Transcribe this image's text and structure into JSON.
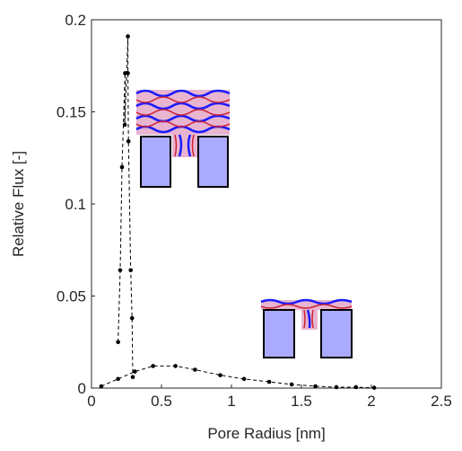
{
  "chart_data": {
    "type": "line",
    "xlabel": "Pore Radius [nm]",
    "ylabel": "Relative Flux [-]",
    "series": [
      {
        "color": "#000000",
        "x": [
          0.19,
          0.205,
          0.218,
          0.24,
          0.238,
          0.26,
          0.26,
          0.264,
          0.28,
          0.29,
          0.295
        ],
        "values": [
          0.025,
          0.064,
          0.12,
          0.171,
          0.143,
          0.191,
          0.171,
          0.134,
          0.064,
          0.038,
          0.006
        ]
      },
      {
        "color": "#000000",
        "x": [
          0.07,
          0.19,
          0.31,
          0.44,
          0.6,
          0.74,
          0.92,
          1.09,
          1.27,
          1.43,
          1.6,
          1.75,
          1.89,
          2.02
        ],
        "values": [
          0.001,
          0.005,
          0.009,
          0.012,
          0.012,
          0.01,
          0.007,
          0.005,
          0.0034,
          0.002,
          0.001,
          0.0005,
          0.0005,
          0.0002
        ]
      }
    ],
    "xlim": [
      0,
      2.5
    ],
    "xticks": [
      0,
      0.5,
      1,
      1.5,
      2,
      2.5
    ],
    "ylim": [
      0,
      0.2
    ],
    "yticks": [
      0,
      0.05,
      0.1,
      0.15,
      0.2
    ]
  }
}
